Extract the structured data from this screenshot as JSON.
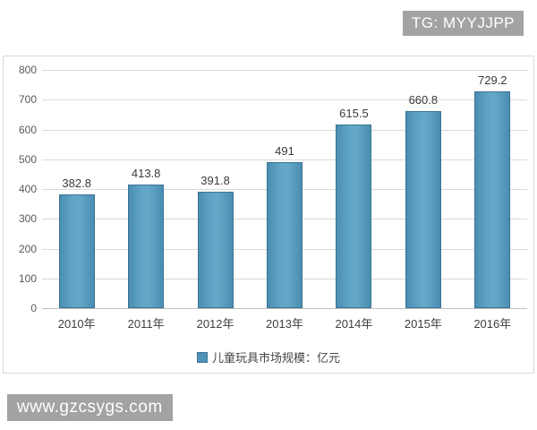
{
  "watermarks": {
    "top_right": "TG: MYYJJPP",
    "bottom_left": "www.gzcsygs.com"
  },
  "chart_data": {
    "type": "bar",
    "title": "",
    "categories": [
      "2010年",
      "2011年",
      "2012年",
      "2013年",
      "2014年",
      "2015年",
      "2016年"
    ],
    "values": [
      382.8,
      413.8,
      391.8,
      491,
      615.5,
      660.8,
      729.2
    ],
    "value_labels": [
      "382.8",
      "413.8",
      "391.8",
      "491",
      "615.5",
      "660.8",
      "729.2"
    ],
    "legend": "儿童玩具市场规模：亿元",
    "legend_position": "bottom",
    "xlabel": "",
    "ylabel": "",
    "ylim": [
      0,
      800
    ],
    "ytick_interval": 100,
    "yticks": [
      0,
      100,
      200,
      300,
      400,
      500,
      600,
      700,
      800
    ],
    "grid": true,
    "bar_color": "#4f93b8",
    "bar_border_color": "#3c7392",
    "gridline_color": "#d9d9d9"
  }
}
